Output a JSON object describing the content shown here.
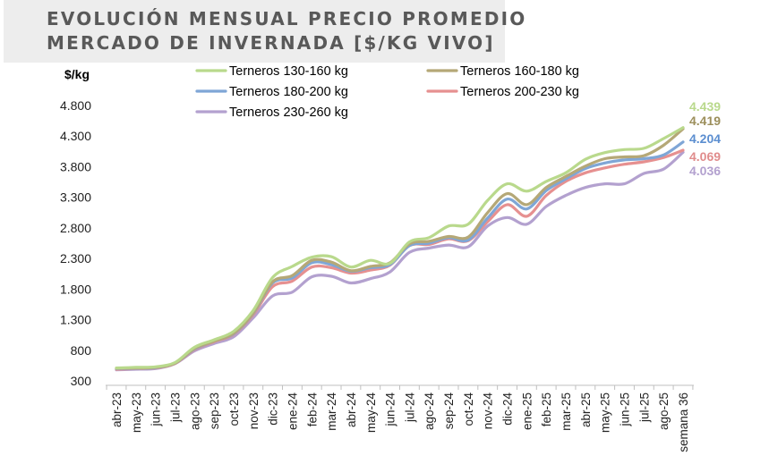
{
  "title_lines": [
    "EVOLUCIÓN MENSUAL PRECIO PROMEDIO",
    "MERCADO DE INVERNADA [$/KG VIVO]"
  ],
  "chart_data": {
    "type": "line",
    "title": "EVOLUCIÓN MENSUAL PRECIO PROMEDIO MERCADO DE INVERNADA [$/KG VIVO]",
    "ylabel": "$/kg",
    "xlabel": "",
    "ylim": [
      300,
      4800
    ],
    "yticks": [
      300,
      800,
      1300,
      1800,
      2300,
      2800,
      3300,
      3800,
      4300,
      4800
    ],
    "ytick_labels": [
      "300",
      "800",
      "1.300",
      "1.800",
      "2.300",
      "2.800",
      "3.300",
      "3.800",
      "4.300",
      "4.800"
    ],
    "grid": false,
    "legend_position": "top",
    "categories": [
      "abr-23",
      "may-23",
      "jun-23",
      "jul-23",
      "ago-23",
      "sep-23",
      "oct-23",
      "nov-23",
      "dic-23",
      "ene-24",
      "feb-24",
      "mar-24",
      "abr-24",
      "may-24",
      "jun-24",
      "jul-24",
      "ago-24",
      "sep-24",
      "oct-24",
      "nov-24",
      "dic-24",
      "ene-25",
      "feb-25",
      "mar-25",
      "abr-25",
      "may-25",
      "jun-25",
      "jul-25",
      "ago-25",
      "semana 36"
    ],
    "series": [
      {
        "name": "Terneros 130-160 kg",
        "color": "#b9d98c",
        "values": [
          510,
          520,
          530,
          600,
          850,
          970,
          1110,
          1450,
          1990,
          2170,
          2320,
          2330,
          2160,
          2270,
          2220,
          2570,
          2640,
          2830,
          2860,
          3250,
          3520,
          3400,
          3560,
          3700,
          3920,
          4030,
          4080,
          4100,
          4260,
          4439
        ],
        "end_label": "4.439"
      },
      {
        "name": "Terneros 160-180 kg",
        "color": "#b5a877",
        "values": [
          505,
          510,
          520,
          590,
          830,
          950,
          1080,
          1410,
          1920,
          2020,
          2270,
          2240,
          2100,
          2170,
          2230,
          2540,
          2580,
          2660,
          2650,
          3050,
          3360,
          3180,
          3460,
          3640,
          3810,
          3930,
          3960,
          3980,
          4150,
          4419
        ],
        "end_label": "4.419"
      },
      {
        "name": "Terneros 180-200 kg",
        "color": "#7fa6d6",
        "values": [
          500,
          505,
          515,
          590,
          820,
          950,
          1070,
          1400,
          1900,
          1980,
          2230,
          2200,
          2090,
          2150,
          2200,
          2510,
          2550,
          2640,
          2600,
          2960,
          3270,
          3110,
          3410,
          3600,
          3770,
          3860,
          3910,
          3930,
          3990,
          4204
        ],
        "end_label": "4.204"
      },
      {
        "name": "Terneros 200-230 kg",
        "color": "#e69090",
        "values": [
          490,
          500,
          510,
          585,
          810,
          940,
          1060,
          1380,
          1840,
          1930,
          2160,
          2150,
          2060,
          2110,
          2190,
          2510,
          2530,
          2620,
          2590,
          2900,
          3180,
          2990,
          3330,
          3560,
          3700,
          3780,
          3840,
          3880,
          3950,
          4069
        ],
        "end_label": "4.069"
      },
      {
        "name": "Terneros 230-260 kg",
        "color": "#b3a1cf",
        "values": [
          480,
          490,
          500,
          580,
          790,
          910,
          1020,
          1330,
          1690,
          1750,
          2000,
          2010,
          1900,
          1970,
          2080,
          2400,
          2470,
          2520,
          2490,
          2830,
          2970,
          2860,
          3150,
          3330,
          3460,
          3520,
          3520,
          3690,
          3760,
          4036
        ],
        "end_label": "4.036"
      }
    ],
    "end_label_colors": [
      "#b9d98c",
      "#9c8f5c",
      "#5b8ed0",
      "#e08c8c",
      "#b3a1cf"
    ]
  }
}
